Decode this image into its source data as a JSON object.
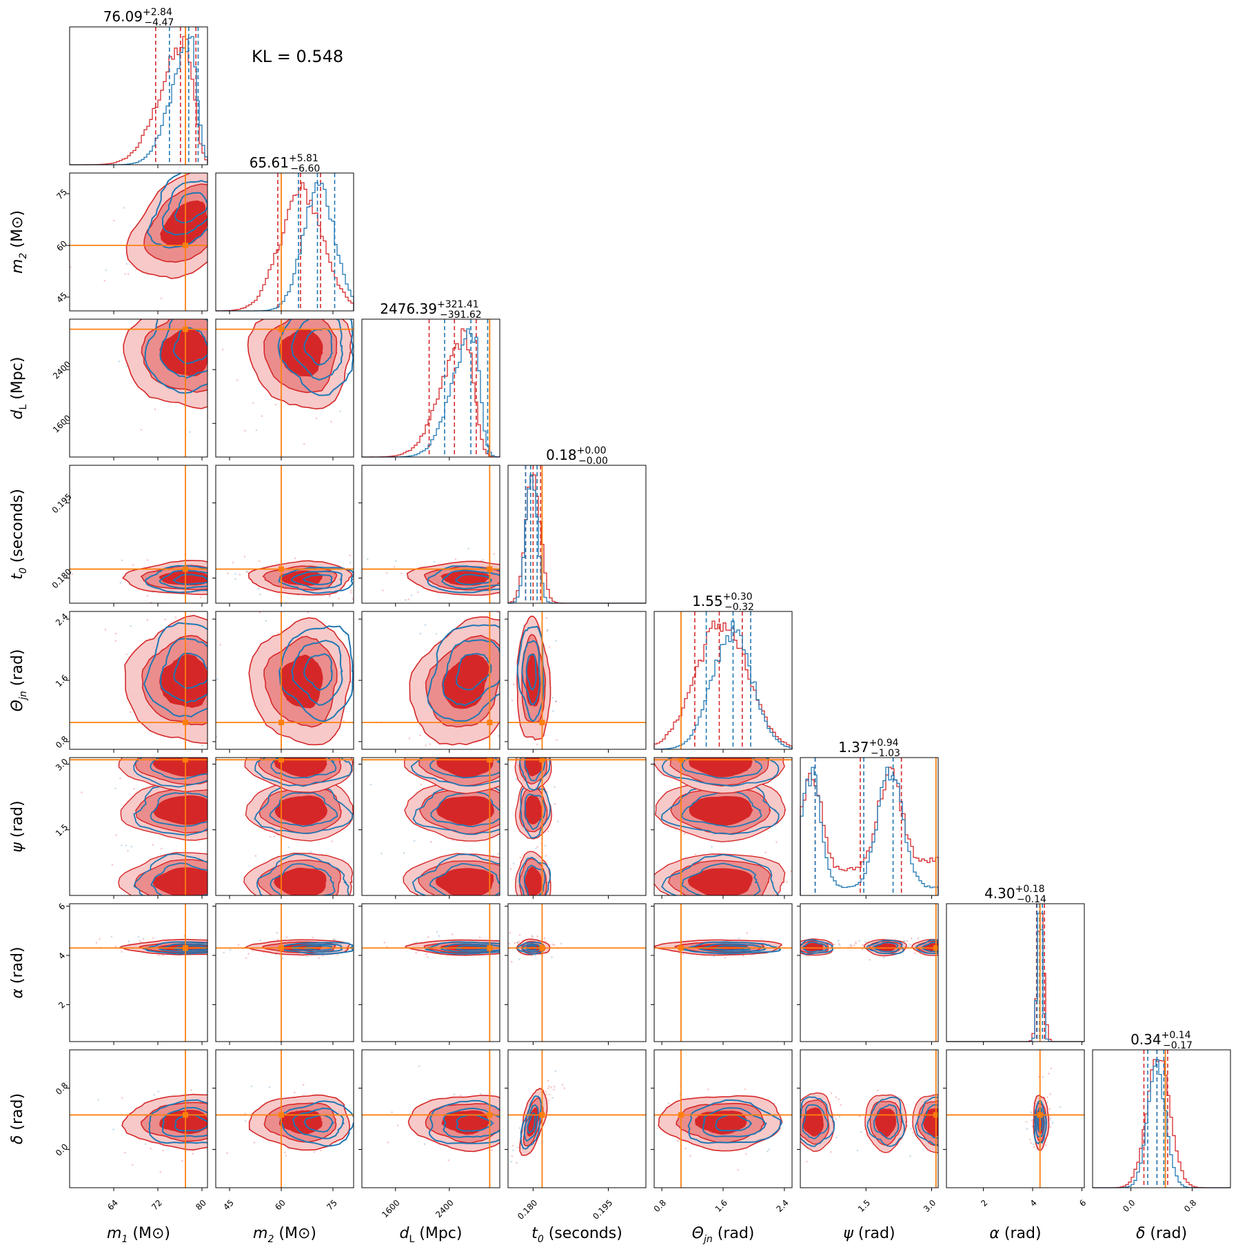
{
  "chart_data": {
    "type": "corner",
    "title": "",
    "kl_label": "KL = 0.548",
    "series": [
      {
        "name": "red posterior",
        "color": "#d62728"
      },
      {
        "name": "blue posterior",
        "color": "#1f77b4"
      }
    ],
    "truth_color": "#ff7f0e",
    "params": [
      {
        "key": "m1",
        "sym": "m",
        "sub": "1",
        "unit": "(M⊙)",
        "range": [
          56,
          81
        ],
        "ticks": [
          64,
          72,
          80
        ],
        "tick_labels": [
          "64",
          "72",
          "80"
        ],
        "truth": 77,
        "title_main": "76.09",
        "title_plus": "+2.84",
        "title_minus": "−4.47",
        "red": {
          "mu": 77,
          "sigma": 4.5,
          "dir": -1,
          "q": [
            71.6,
            76.1,
            78.9
          ]
        },
        "blue": {
          "mu": 78,
          "sigma": 3.5,
          "dir": -1,
          "q": [
            74.1,
            77.6,
            79.3
          ]
        }
      },
      {
        "key": "m2",
        "sym": "m",
        "sub": "2",
        "unit": "(M⊙)",
        "range": [
          41,
          81
        ],
        "ticks": [
          45,
          60,
          75
        ],
        "tick_labels": [
          "45",
          "60",
          "75"
        ],
        "truth": 60,
        "title_main": "65.61",
        "title_plus": "+5.81",
        "title_minus": "−6.60",
        "red": {
          "mu": 66,
          "sigma": 6.2,
          "dir": 0,
          "q": [
            59,
            65.6,
            71.4
          ]
        },
        "blue": {
          "mu": 71,
          "sigma": 4.6,
          "dir": 0,
          "q": [
            65,
            70.5,
            75.5
          ]
        }
      },
      {
        "key": "dL",
        "sym": "d",
        "sub": "L",
        "unit": "(Mpc)",
        "range": [
          1100,
          3150
        ],
        "ticks": [
          1600,
          2400
        ],
        "tick_labels": [
          "1600",
          "2400"
        ],
        "truth": 3000,
        "title_main": "2476.39",
        "title_plus": "+321.41",
        "title_minus": "−391.62",
        "red": {
          "mu": 2650,
          "sigma": 350,
          "dir": -1,
          "q": [
            2100,
            2476,
            2800
          ]
        },
        "blue": {
          "mu": 2750,
          "sigma": 300,
          "dir": -1,
          "q": [
            2330,
            2720,
            2970
          ]
        }
      },
      {
        "key": "t0",
        "sym": "t",
        "sub": "0",
        "unit": "(seconds)",
        "range": [
          0.175,
          0.2025
        ],
        "ticks": [
          0.18,
          0.195
        ],
        "tick_labels": [
          "0.180",
          "0.195"
        ],
        "truth": 0.1818,
        "title_main": "0.18",
        "title_plus": "+0.00",
        "title_minus": "−0.00",
        "red": {
          "mu": 0.18,
          "sigma": 0.0014,
          "dir": 0,
          "q": [
            0.1785,
            0.18,
            0.1815
          ]
        },
        "blue": {
          "mu": 0.1797,
          "sigma": 0.0011,
          "dir": 0,
          "q": [
            0.1785,
            0.1795,
            0.1808
          ]
        }
      },
      {
        "key": "theta",
        "sym": "Θ",
        "sub": "jn",
        "unit": "(rad)",
        "range": [
          0.7,
          2.5
        ],
        "ticks": [
          0.8,
          1.6,
          2.4
        ],
        "tick_labels": [
          "0.8",
          "1.6",
          "2.4"
        ],
        "truth": 1.05,
        "title_main": "1.55",
        "title_plus": "+0.30",
        "title_minus": "−0.32",
        "red": {
          "mu": 1.58,
          "sigma": 0.34,
          "dir": 0,
          "q": [
            1.23,
            1.55,
            1.85
          ]
        },
        "blue": {
          "mu": 1.72,
          "sigma": 0.26,
          "dir": 0,
          "q": [
            1.38,
            1.73,
            1.96
          ]
        }
      },
      {
        "key": "psi",
        "sym": "ψ",
        "sub": "",
        "unit": "(rad)",
        "range": [
          0,
          3.15
        ],
        "ticks": [
          1.5,
          3.0
        ],
        "tick_labels": [
          "1.5",
          "3.0"
        ],
        "truth": 3.1,
        "title_main": "1.37",
        "title_plus": "+0.94",
        "title_minus": "−1.03",
        "red": {
          "mu": 1.6,
          "sigma": 0.9,
          "dir": 0,
          "q": [
            0.34,
            1.37,
            2.31
          ]
        },
        "blue": {
          "mu": 1.7,
          "sigma": 0.8,
          "dir": 0,
          "q": [
            0.34,
            1.45,
            2.12
          ]
        }
      },
      {
        "key": "alpha",
        "sym": "α",
        "sub": "",
        "unit": "(rad)",
        "range": [
          0.5,
          6.1
        ],
        "ticks": [
          2,
          4,
          6
        ],
        "tick_labels": [
          "2",
          "4",
          "6"
        ],
        "truth": 4.3,
        "title_main": "4.30",
        "title_plus": "+0.18",
        "title_minus": "−0.14",
        "red": {
          "mu": 4.33,
          "sigma": 0.13,
          "dir": 0,
          "q": [
            4.16,
            4.3,
            4.48
          ]
        },
        "blue": {
          "mu": 4.3,
          "sigma": 0.1,
          "dir": 0,
          "q": [
            4.18,
            4.28,
            4.4
          ]
        }
      },
      {
        "key": "delta",
        "sym": "δ",
        "sub": "",
        "unit": "(rad)",
        "range": [
          -0.5,
          1.3
        ],
        "ticks": [
          0.0,
          0.8
        ],
        "tick_labels": [
          "0.0",
          "0.8"
        ],
        "truth": 0.45,
        "title_main": "0.34",
        "title_plus": "+0.14",
        "title_minus": "−0.17",
        "red": {
          "mu": 0.36,
          "sigma": 0.15,
          "dir": 0,
          "q": [
            0.17,
            0.34,
            0.48
          ]
        },
        "blue": {
          "mu": 0.34,
          "sigma": 0.12,
          "dir": 0,
          "q": [
            0.22,
            0.34,
            0.43
          ]
        }
      }
    ]
  }
}
